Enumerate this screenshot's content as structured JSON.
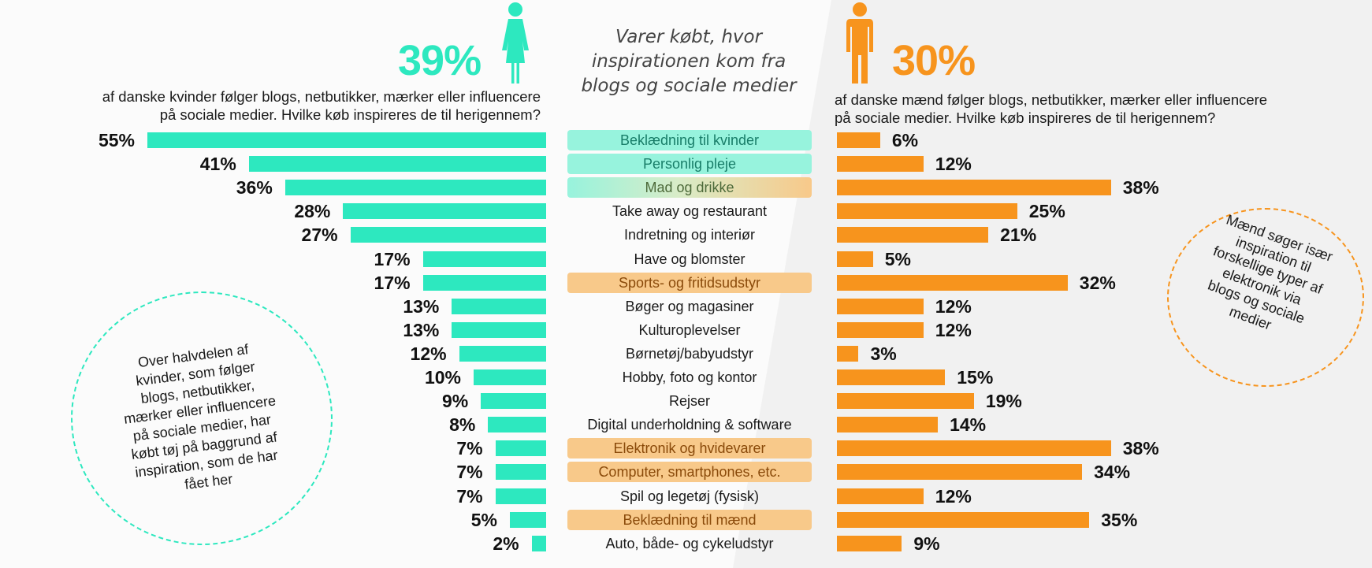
{
  "colors": {
    "female": "#2de8bf",
    "male": "#f7941d"
  },
  "female": {
    "pct": "39%",
    "icon": "woman-icon",
    "description": "af danske kvinder følger blogs, netbutikker, mærker eller influencere\npå sociale medier. Hvilke køb inspireres de til herigennem?",
    "callout": "Over halvdelen af\nkvinder, som følger\nblogs, netbutikker,\nmærker eller influencere\npå sociale medier, har\nkøbt tøj på baggrund af\ninspiration, som de har\nfået her"
  },
  "male": {
    "pct": "30%",
    "icon": "man-icon",
    "description": "af danske mænd følger blogs, netbutikker, mærker eller influencere\npå sociale medier. Hvilke køb inspireres de til herigennem?",
    "callout": "Mænd søger især\ninspiration til\nforskellige typer af\nelektronik via\nblogs og sociale\nmedier"
  },
  "center_title": "Varer købt, hvor\ninspirationen kom fra\nblogs og sociale medier",
  "chart_data": {
    "type": "bar",
    "orientation": "horizontal",
    "layout": "butterfly",
    "title": "Varer købt, hvor inspirationen kom fra blogs og sociale medier",
    "categories": [
      "Beklædning til kvinder",
      "Personlig pleje",
      "Mad og drikke",
      "Take away og restaurant",
      "Indretning og interiør",
      "Have og blomster",
      "Sports- og fritidsudstyr",
      "Bøger og magasiner",
      "Kulturoplevelser",
      "Børnetøj/babyudstyr",
      "Hobby, foto og kontor",
      "Rejser",
      "Digital underholdning & software",
      "Elektronik og hvidevarer",
      "Computer, smartphones, etc.",
      "Spil og legetøj (fysisk)",
      "Beklædning til mænd",
      "Auto, både- og cykeludstyr"
    ],
    "highlight": [
      "female",
      "female",
      "both",
      "none",
      "none",
      "none",
      "male",
      "none",
      "none",
      "none",
      "none",
      "none",
      "none",
      "male",
      "male",
      "none",
      "male",
      "none"
    ],
    "series": [
      {
        "name": "Kvinder",
        "color": "#2de8bf",
        "values": [
          55,
          41,
          36,
          28,
          27,
          17,
          17,
          13,
          13,
          12,
          10,
          9,
          8,
          7,
          7,
          7,
          5,
          2
        ]
      },
      {
        "name": "Mænd",
        "color": "#f7941d",
        "values": [
          6,
          12,
          38,
          25,
          21,
          5,
          32,
          12,
          12,
          3,
          15,
          19,
          14,
          38,
          34,
          12,
          35,
          9
        ]
      }
    ],
    "value_suffix": "%",
    "xlim": [
      0,
      55
    ]
  }
}
